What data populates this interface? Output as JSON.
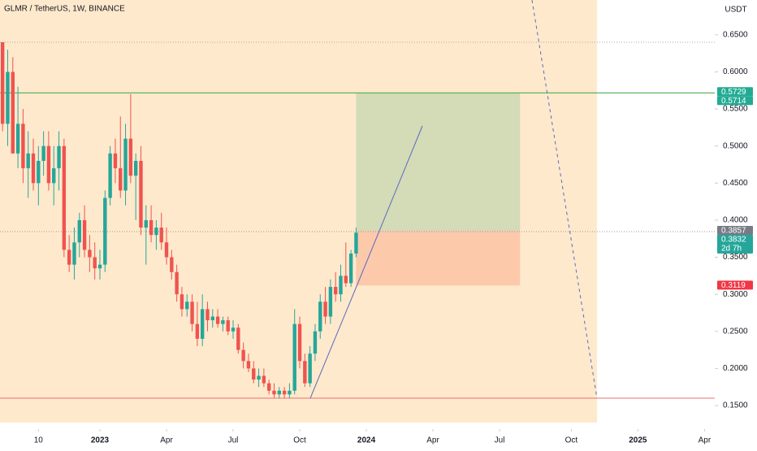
{
  "chart_data": {
    "type": "candlestick",
    "title": "GLMR / TetherUS, 1W, BINANCE",
    "currency": "USDT",
    "up_color": "#26a69a",
    "down_color": "#ef5350",
    "x": [
      0,
      1,
      2,
      3,
      4,
      5,
      6,
      7,
      8,
      9,
      10,
      11,
      12,
      13,
      14,
      15,
      16,
      17,
      18,
      19,
      20,
      21,
      22,
      23,
      24,
      25,
      26,
      27,
      28,
      29,
      30,
      31,
      32,
      33,
      34,
      35,
      36,
      37,
      38,
      39,
      40,
      41,
      42,
      43,
      44,
      45,
      46,
      47,
      48,
      49,
      50,
      51,
      52,
      53,
      54,
      55,
      56,
      57,
      58,
      59,
      60,
      61,
      62,
      63,
      64,
      65,
      66,
      67,
      68,
      69
    ],
    "open": [
      0.64,
      0.53,
      0.6,
      0.49,
      0.53,
      0.47,
      0.49,
      0.45,
      0.48,
      0.5,
      0.45,
      0.47,
      0.5,
      0.36,
      0.34,
      0.37,
      0.4,
      0.36,
      0.35,
      0.335,
      0.34,
      0.43,
      0.49,
      0.47,
      0.44,
      0.51,
      0.46,
      0.48,
      0.39,
      0.4,
      0.38,
      0.39,
      0.37,
      0.35,
      0.33,
      0.3,
      0.28,
      0.29,
      0.26,
      0.24,
      0.28,
      0.265,
      0.27,
      0.26,
      0.265,
      0.25,
      0.255,
      0.225,
      0.21,
      0.2,
      0.185,
      0.19,
      0.18,
      0.17,
      0.165,
      0.17,
      0.165,
      0.17,
      0.26,
      0.21,
      0.18,
      0.22,
      0.25,
      0.29,
      0.27,
      0.31,
      0.3,
      0.325,
      0.315,
      0.355
    ],
    "high": [
      0.64,
      0.63,
      0.62,
      0.58,
      0.55,
      0.52,
      0.51,
      0.5,
      0.52,
      0.52,
      0.5,
      0.52,
      0.51,
      0.38,
      0.39,
      0.41,
      0.42,
      0.38,
      0.37,
      0.36,
      0.44,
      0.5,
      0.51,
      0.54,
      0.53,
      0.57,
      0.49,
      0.5,
      0.42,
      0.42,
      0.4,
      0.41,
      0.39,
      0.36,
      0.34,
      0.31,
      0.3,
      0.3,
      0.29,
      0.3,
      0.29,
      0.28,
      0.28,
      0.27,
      0.27,
      0.265,
      0.26,
      0.235,
      0.22,
      0.21,
      0.2,
      0.2,
      0.185,
      0.18,
      0.175,
      0.175,
      0.18,
      0.28,
      0.27,
      0.22,
      0.23,
      0.26,
      0.3,
      0.31,
      0.32,
      0.33,
      0.34,
      0.37,
      0.36,
      0.39
    ],
    "low": [
      0.52,
      0.5,
      0.49,
      0.47,
      0.45,
      0.43,
      0.44,
      0.42,
      0.46,
      0.44,
      0.42,
      0.44,
      0.35,
      0.33,
      0.32,
      0.35,
      0.35,
      0.33,
      0.32,
      0.32,
      0.33,
      0.42,
      0.45,
      0.43,
      0.42,
      0.45,
      0.4,
      0.38,
      0.34,
      0.37,
      0.36,
      0.36,
      0.34,
      0.32,
      0.29,
      0.27,
      0.27,
      0.25,
      0.23,
      0.23,
      0.25,
      0.255,
      0.255,
      0.25,
      0.245,
      0.24,
      0.22,
      0.2,
      0.195,
      0.18,
      0.175,
      0.175,
      0.165,
      0.16,
      0.16,
      0.16,
      0.16,
      0.165,
      0.2,
      0.175,
      0.175,
      0.21,
      0.24,
      0.26,
      0.26,
      0.29,
      0.29,
      0.31,
      0.31,
      0.35
    ],
    "close": [
      0.53,
      0.6,
      0.49,
      0.53,
      0.47,
      0.49,
      0.45,
      0.48,
      0.5,
      0.45,
      0.47,
      0.5,
      0.36,
      0.34,
      0.37,
      0.4,
      0.36,
      0.35,
      0.335,
      0.34,
      0.43,
      0.49,
      0.47,
      0.44,
      0.51,
      0.46,
      0.48,
      0.39,
      0.4,
      0.38,
      0.39,
      0.37,
      0.35,
      0.33,
      0.3,
      0.28,
      0.29,
      0.26,
      0.24,
      0.28,
      0.265,
      0.27,
      0.26,
      0.265,
      0.25,
      0.255,
      0.225,
      0.21,
      0.2,
      0.185,
      0.19,
      0.18,
      0.17,
      0.165,
      0.17,
      0.165,
      0.17,
      0.26,
      0.21,
      0.18,
      0.22,
      0.25,
      0.29,
      0.27,
      0.31,
      0.3,
      0.325,
      0.315,
      0.355,
      0.3832
    ],
    "xlim": [
      -0.5,
      139
    ],
    "xticks": [
      {
        "value": 7,
        "label": "10"
      },
      {
        "value": 19,
        "label": "2023"
      },
      {
        "value": 32,
        "label": "Apr"
      },
      {
        "value": 45,
        "label": "Jul"
      },
      {
        "value": 58,
        "label": "Oct"
      },
      {
        "value": 71,
        "label": "2024"
      },
      {
        "value": 84,
        "label": "Apr"
      },
      {
        "value": 97,
        "label": "Jul"
      },
      {
        "value": 111,
        "label": "Oct"
      },
      {
        "value": 124,
        "label": "2025"
      },
      {
        "value": 137,
        "label": "Apr"
      }
    ],
    "ylim": [
      0.127,
      0.697
    ],
    "yticks": [
      {
        "value": 0.15,
        "label": "0.1500"
      },
      {
        "value": 0.2,
        "label": "0.2000"
      },
      {
        "value": 0.25,
        "label": "0.2500"
      },
      {
        "value": 0.3,
        "label": "0.3000"
      },
      {
        "value": 0.35,
        "label": "0.3500"
      },
      {
        "value": 0.4,
        "label": "0.4000"
      },
      {
        "value": 0.45,
        "label": "0.4500"
      },
      {
        "value": 0.5,
        "label": "0.5000"
      },
      {
        "value": 0.55,
        "label": "0.5500"
      },
      {
        "value": 0.6,
        "label": "0.6000"
      },
      {
        "value": 0.65,
        "label": "0.6500"
      }
    ],
    "price_labels": [
      {
        "value": 0.5729,
        "color": "#22ab94"
      },
      {
        "value": 0.5714,
        "color": "#22ab94"
      },
      {
        "value": 0.3857,
        "color": "#787b86"
      },
      {
        "value": 0.3832,
        "color": "#26a69a",
        "countdown": "2d 7h"
      },
      {
        "value": 0.3119,
        "color": "#f23645"
      }
    ],
    "position": {
      "target": 0.5714,
      "entry": 0.3857,
      "stop": 0.3119,
      "x": [
        69,
        101
      ]
    }
  }
}
